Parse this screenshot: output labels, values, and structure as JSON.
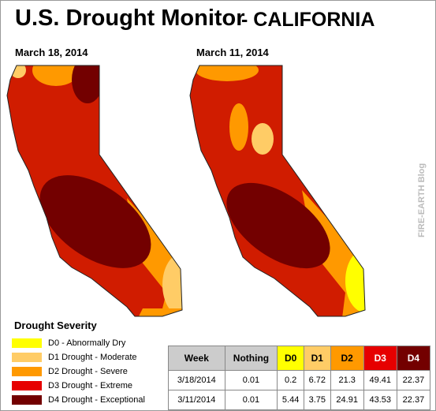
{
  "title": "U.S. Drought Monitor",
  "subtitle": "- CALIFORNIA",
  "maps": [
    {
      "label": "March 18, 2014"
    },
    {
      "label": "March 11, 2014"
    }
  ],
  "watermark": "FIRE-EARTH Blog",
  "legend": {
    "title": "Drought Severity",
    "items": [
      {
        "label": "D0 - Abnormally Dry",
        "color": "#ffff00"
      },
      {
        "label": "D1 Drought - Moderate",
        "color": "#ffcc66"
      },
      {
        "label": "D2 Drought - Severe",
        "color": "#ff9900"
      },
      {
        "label": "D3 Drought - Extreme",
        "color": "#e60000"
      },
      {
        "label": "D4 Drought - Exceptional",
        "color": "#730000"
      }
    ]
  },
  "table": {
    "header": [
      "Week",
      "Nothing",
      "D0",
      "D1",
      "D2",
      "D3",
      "D4"
    ],
    "rows": [
      [
        "3/18/2014",
        0.01,
        0.2,
        6.72,
        21.3,
        49.41,
        22.37
      ],
      [
        "3/11/2014",
        0.01,
        5.44,
        3.75,
        24.91,
        43.53,
        22.37
      ]
    ]
  }
}
